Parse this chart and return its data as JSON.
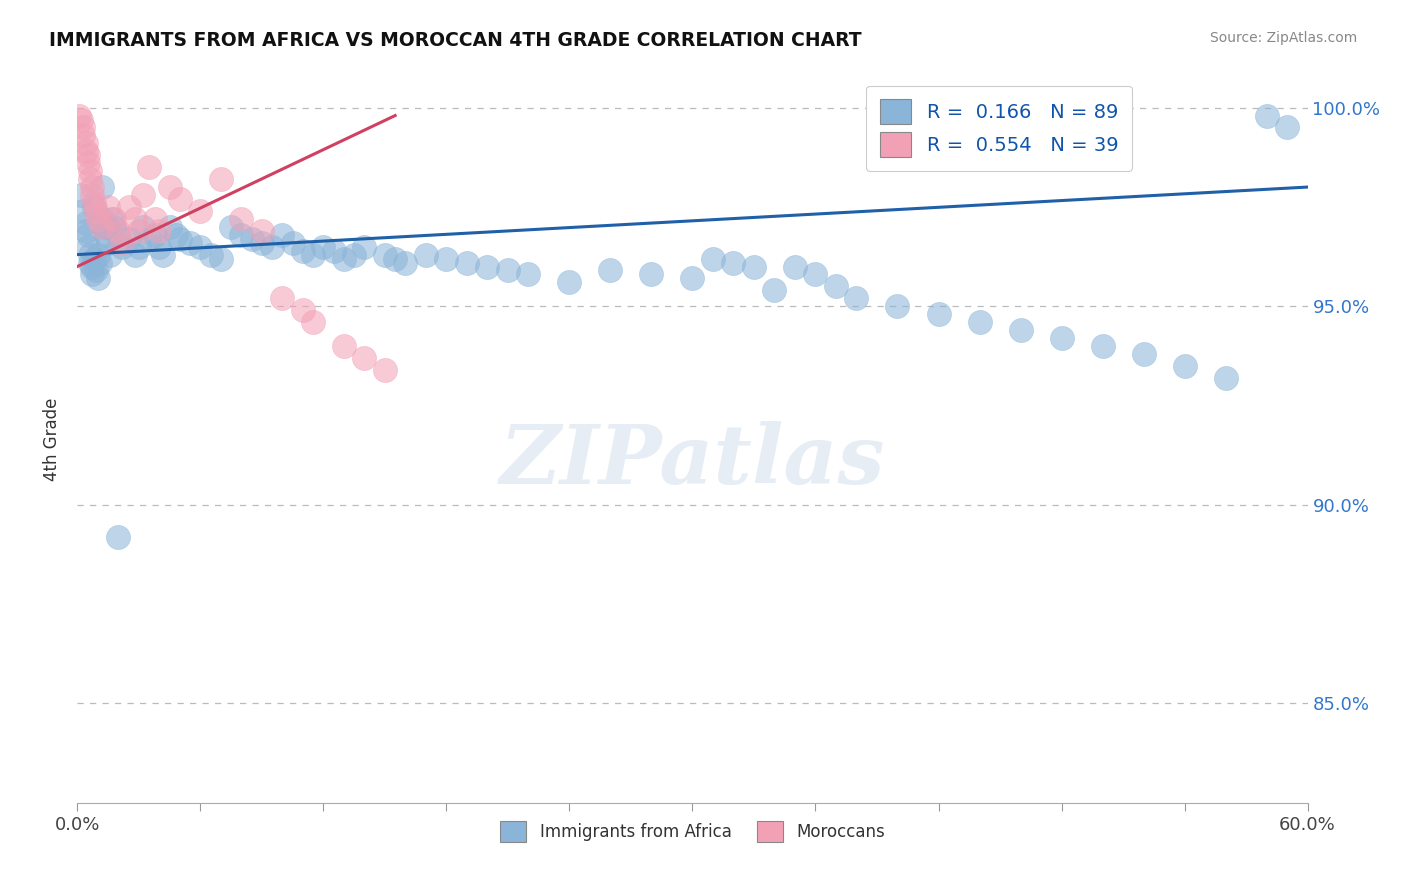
{
  "title": "IMMIGRANTS FROM AFRICA VS MOROCCAN 4TH GRADE CORRELATION CHART",
  "source": "Source: ZipAtlas.com",
  "ylabel": "4th Grade",
  "xlim": [
    0.0,
    0.6
  ],
  "ylim": [
    0.825,
    1.008
  ],
  "yticks": [
    0.85,
    0.9,
    0.95,
    1.0
  ],
  "yticklabels_right": [
    "85.0%",
    "90.0%",
    "95.0%",
    "100.0%"
  ],
  "R_blue": 0.166,
  "N_blue": 89,
  "R_pink": 0.554,
  "N_pink": 39,
  "blue_color": "#8ab4d8",
  "pink_color": "#f2a0b5",
  "blue_line_color": "#2060a8",
  "pink_line_color": "#d04060",
  "blue_line_x0": 0.0,
  "blue_line_y0": 0.963,
  "blue_line_x1": 0.6,
  "blue_line_y1": 0.98,
  "pink_line_x0": 0.0,
  "pink_line_y0": 0.96,
  "pink_line_x1": 0.155,
  "pink_line_y1": 0.998,
  "legend_blue_label": "Immigrants from Africa",
  "legend_pink_label": "Moroccans",
  "watermark": "ZIPatlas",
  "blue_scatter_x": [
    0.002,
    0.003,
    0.004,
    0.004,
    0.005,
    0.005,
    0.006,
    0.006,
    0.007,
    0.007,
    0.008,
    0.009,
    0.01,
    0.01,
    0.011,
    0.012,
    0.013,
    0.014,
    0.015,
    0.016,
    0.017,
    0.018,
    0.02,
    0.022,
    0.025,
    0.028,
    0.03,
    0.032,
    0.035,
    0.038,
    0.04,
    0.042,
    0.045,
    0.048,
    0.05,
    0.055,
    0.06,
    0.065,
    0.07,
    0.075,
    0.08,
    0.085,
    0.09,
    0.095,
    0.1,
    0.105,
    0.11,
    0.115,
    0.12,
    0.125,
    0.13,
    0.135,
    0.14,
    0.15,
    0.155,
    0.16,
    0.17,
    0.18,
    0.19,
    0.2,
    0.21,
    0.22,
    0.24,
    0.26,
    0.28,
    0.3,
    0.31,
    0.32,
    0.33,
    0.34,
    0.35,
    0.36,
    0.37,
    0.38,
    0.4,
    0.42,
    0.44,
    0.46,
    0.48,
    0.5,
    0.52,
    0.54,
    0.56,
    0.58,
    0.59,
    0.008,
    0.012,
    0.015,
    0.02
  ],
  "blue_scatter_y": [
    0.978,
    0.974,
    0.971,
    0.969,
    0.968,
    0.965,
    0.963,
    0.961,
    0.96,
    0.958,
    0.962,
    0.959,
    0.957,
    0.963,
    0.961,
    0.972,
    0.97,
    0.968,
    0.966,
    0.963,
    0.972,
    0.97,
    0.968,
    0.965,
    0.967,
    0.963,
    0.965,
    0.97,
    0.967,
    0.968,
    0.965,
    0.963,
    0.97,
    0.968,
    0.967,
    0.966,
    0.965,
    0.963,
    0.962,
    0.97,
    0.968,
    0.967,
    0.966,
    0.965,
    0.968,
    0.966,
    0.964,
    0.963,
    0.965,
    0.964,
    0.962,
    0.963,
    0.965,
    0.963,
    0.962,
    0.961,
    0.963,
    0.962,
    0.961,
    0.96,
    0.959,
    0.958,
    0.956,
    0.959,
    0.958,
    0.957,
    0.962,
    0.961,
    0.96,
    0.954,
    0.96,
    0.958,
    0.955,
    0.952,
    0.95,
    0.948,
    0.946,
    0.944,
    0.942,
    0.94,
    0.938,
    0.935,
    0.932,
    0.998,
    0.995,
    0.975,
    0.98,
    0.97,
    0.892
  ],
  "pink_scatter_x": [
    0.001,
    0.002,
    0.003,
    0.003,
    0.004,
    0.004,
    0.005,
    0.005,
    0.006,
    0.006,
    0.007,
    0.007,
    0.008,
    0.009,
    0.01,
    0.012,
    0.015,
    0.018,
    0.02,
    0.022,
    0.025,
    0.028,
    0.03,
    0.032,
    0.035,
    0.038,
    0.04,
    0.045,
    0.05,
    0.06,
    0.07,
    0.08,
    0.09,
    0.1,
    0.11,
    0.115,
    0.13,
    0.14,
    0.15
  ],
  "pink_scatter_y": [
    0.998,
    0.997,
    0.995,
    0.993,
    0.991,
    0.989,
    0.988,
    0.986,
    0.984,
    0.982,
    0.98,
    0.978,
    0.976,
    0.974,
    0.972,
    0.97,
    0.975,
    0.972,
    0.969,
    0.966,
    0.975,
    0.972,
    0.969,
    0.978,
    0.985,
    0.972,
    0.969,
    0.98,
    0.977,
    0.974,
    0.982,
    0.972,
    0.969,
    0.952,
    0.949,
    0.946,
    0.94,
    0.937,
    0.934
  ]
}
